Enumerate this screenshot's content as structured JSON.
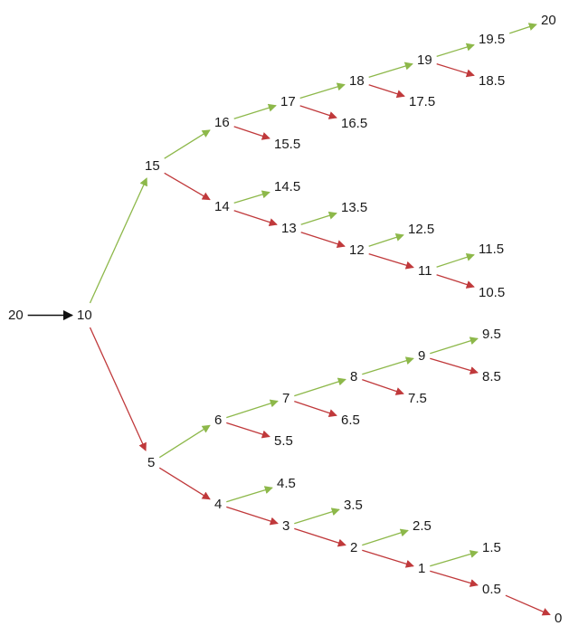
{
  "colors": {
    "up": "#8db84a",
    "down": "#c0393b",
    "start": "#111111"
  },
  "start_label": "20",
  "nodes": [
    {
      "id": "n20s",
      "label": "20"
    },
    {
      "id": "n10",
      "label": "10"
    },
    {
      "id": "n15",
      "label": "15"
    },
    {
      "id": "n5",
      "label": "5"
    },
    {
      "id": "n16",
      "label": "16"
    },
    {
      "id": "n14",
      "label": "14"
    },
    {
      "id": "n17",
      "label": "17"
    },
    {
      "id": "n15_5",
      "label": "15.5"
    },
    {
      "id": "n18",
      "label": "18"
    },
    {
      "id": "n16_5",
      "label": "16.5"
    },
    {
      "id": "n19",
      "label": "19"
    },
    {
      "id": "n17_5",
      "label": "17.5"
    },
    {
      "id": "n19_5",
      "label": "19.5"
    },
    {
      "id": "n18_5",
      "label": "18.5"
    },
    {
      "id": "n20",
      "label": "20"
    },
    {
      "id": "n14_5",
      "label": "14.5"
    },
    {
      "id": "n13",
      "label": "13"
    },
    {
      "id": "n13_5",
      "label": "13.5"
    },
    {
      "id": "n12",
      "label": "12"
    },
    {
      "id": "n12_5",
      "label": "12.5"
    },
    {
      "id": "n11",
      "label": "11"
    },
    {
      "id": "n11_5",
      "label": "11.5"
    },
    {
      "id": "n10_5",
      "label": "10.5"
    },
    {
      "id": "n6",
      "label": "6"
    },
    {
      "id": "n4",
      "label": "4"
    },
    {
      "id": "n7",
      "label": "7"
    },
    {
      "id": "n5_5",
      "label": "5.5"
    },
    {
      "id": "n8",
      "label": "8"
    },
    {
      "id": "n6_5",
      "label": "6.5"
    },
    {
      "id": "n9",
      "label": "9"
    },
    {
      "id": "n7_5",
      "label": "7.5"
    },
    {
      "id": "n9_5",
      "label": "9.5"
    },
    {
      "id": "n8_5",
      "label": "8.5"
    },
    {
      "id": "n4_5",
      "label": "4.5"
    },
    {
      "id": "n3",
      "label": "3"
    },
    {
      "id": "n3_5",
      "label": "3.5"
    },
    {
      "id": "n2",
      "label": "2"
    },
    {
      "id": "n2_5",
      "label": "2.5"
    },
    {
      "id": "n1",
      "label": "1"
    },
    {
      "id": "n1_5",
      "label": "1.5"
    },
    {
      "id": "n0_5",
      "label": "0.5"
    },
    {
      "id": "n0",
      "label": "0"
    }
  ],
  "edges": [
    {
      "from": "n20s",
      "to": "n10",
      "kind": "start"
    },
    {
      "from": "n10",
      "to": "n15",
      "kind": "up"
    },
    {
      "from": "n10",
      "to": "n5",
      "kind": "down"
    },
    {
      "from": "n15",
      "to": "n16",
      "kind": "up"
    },
    {
      "from": "n15",
      "to": "n14",
      "kind": "down"
    },
    {
      "from": "n16",
      "to": "n17",
      "kind": "up"
    },
    {
      "from": "n16",
      "to": "n15_5",
      "kind": "down"
    },
    {
      "from": "n17",
      "to": "n18",
      "kind": "up"
    },
    {
      "from": "n17",
      "to": "n16_5",
      "kind": "down"
    },
    {
      "from": "n18",
      "to": "n19",
      "kind": "up"
    },
    {
      "from": "n18",
      "to": "n17_5",
      "kind": "down"
    },
    {
      "from": "n19",
      "to": "n19_5",
      "kind": "up"
    },
    {
      "from": "n19",
      "to": "n18_5",
      "kind": "down"
    },
    {
      "from": "n19_5",
      "to": "n20",
      "kind": "up"
    },
    {
      "from": "n14",
      "to": "n14_5",
      "kind": "up"
    },
    {
      "from": "n14",
      "to": "n13",
      "kind": "down"
    },
    {
      "from": "n13",
      "to": "n13_5",
      "kind": "up"
    },
    {
      "from": "n13",
      "to": "n12",
      "kind": "down"
    },
    {
      "from": "n12",
      "to": "n12_5",
      "kind": "up"
    },
    {
      "from": "n12",
      "to": "n11",
      "kind": "down"
    },
    {
      "from": "n11",
      "to": "n11_5",
      "kind": "up"
    },
    {
      "from": "n11",
      "to": "n10_5",
      "kind": "down"
    },
    {
      "from": "n5",
      "to": "n6",
      "kind": "up"
    },
    {
      "from": "n5",
      "to": "n4",
      "kind": "down"
    },
    {
      "from": "n6",
      "to": "n7",
      "kind": "up"
    },
    {
      "from": "n6",
      "to": "n5_5",
      "kind": "down"
    },
    {
      "from": "n7",
      "to": "n8",
      "kind": "up"
    },
    {
      "from": "n7",
      "to": "n6_5",
      "kind": "down"
    },
    {
      "from": "n8",
      "to": "n9",
      "kind": "up"
    },
    {
      "from": "n8",
      "to": "n7_5",
      "kind": "down"
    },
    {
      "from": "n9",
      "to": "n9_5",
      "kind": "up"
    },
    {
      "from": "n9",
      "to": "n8_5",
      "kind": "down"
    },
    {
      "from": "n4",
      "to": "n4_5",
      "kind": "up"
    },
    {
      "from": "n4",
      "to": "n3",
      "kind": "down"
    },
    {
      "from": "n3",
      "to": "n3_5",
      "kind": "up"
    },
    {
      "from": "n3",
      "to": "n2",
      "kind": "down"
    },
    {
      "from": "n2",
      "to": "n2_5",
      "kind": "up"
    },
    {
      "from": "n2",
      "to": "n1",
      "kind": "down"
    },
    {
      "from": "n1",
      "to": "n1_5",
      "kind": "up"
    },
    {
      "from": "n1",
      "to": "n0_5",
      "kind": "down"
    },
    {
      "from": "n0_5",
      "to": "n0",
      "kind": "down"
    }
  ]
}
